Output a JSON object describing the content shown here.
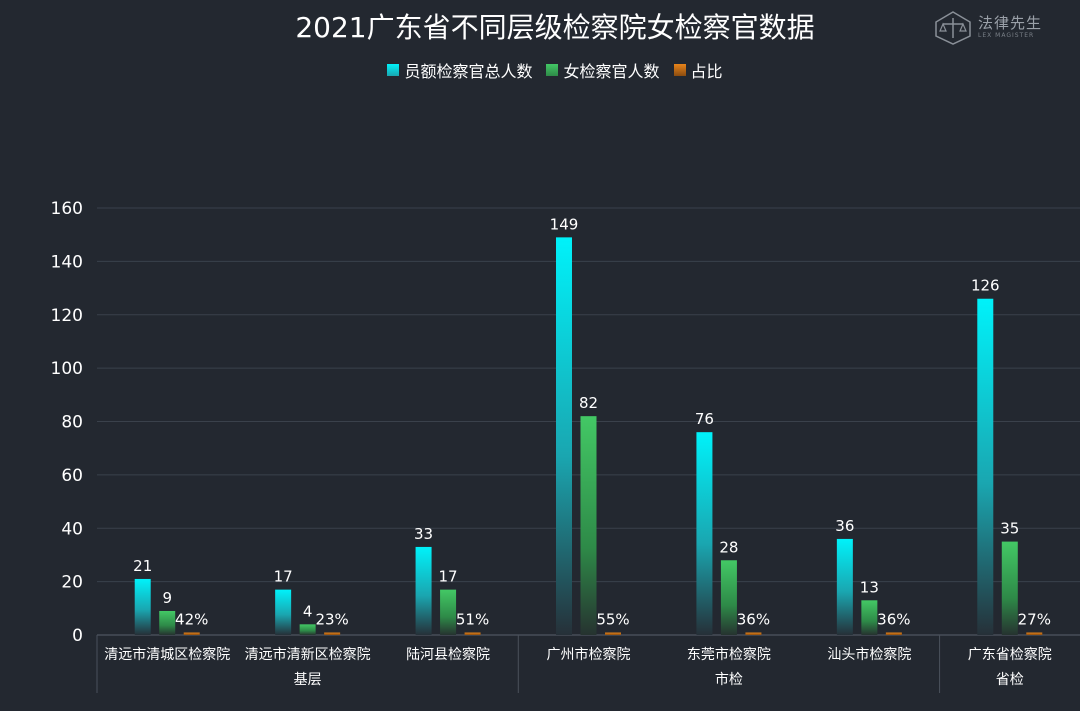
{
  "header": {
    "title": "2021广东省不同层级检察院女检察官数据"
  },
  "logo": {
    "name": "法律先生",
    "subtitle": "LEX MAGISTER",
    "icon": "scales-logo-icon"
  },
  "chart_data": {
    "type": "bar",
    "title": "2021广东省不同层级检察院女检察官数据",
    "xlabel": "",
    "ylabel": "",
    "ylim": [
      0,
      160
    ],
    "yticks": [
      0,
      20,
      40,
      60,
      80,
      100,
      120,
      140,
      160
    ],
    "grid": true,
    "legend_position": "top-center",
    "categories": [
      "清远市清城区检察院",
      "清远市清新区检察院",
      "陆河县检察院",
      "广州市检察院",
      "东莞市检察院",
      "汕头市检察院",
      "广东省检察院"
    ],
    "groups": [
      {
        "label": "基层",
        "categories": [
          "清远市清城区检察院",
          "清远市清新区检察院",
          "陆河县检察院"
        ]
      },
      {
        "label": "市检",
        "categories": [
          "广州市检察院",
          "东莞市检察院",
          "汕头市检察院"
        ]
      },
      {
        "label": "省检",
        "categories": [
          "广东省检察院"
        ]
      }
    ],
    "series": [
      {
        "name": "员额检察官总人数",
        "values": [
          21,
          17,
          33,
          149,
          76,
          36,
          126
        ],
        "labels": [
          "21",
          "17",
          "33",
          "149",
          "76",
          "36",
          "126"
        ],
        "color": "#00e5f0"
      },
      {
        "name": "女检察官人数",
        "values": [
          9,
          4,
          17,
          82,
          28,
          13,
          35
        ],
        "labels": [
          "9",
          "4",
          "17",
          "82",
          "28",
          "13",
          "35"
        ],
        "color": "#3dbb5c"
      },
      {
        "name": "占比",
        "values": [
          0.42,
          0.23,
          0.51,
          0.55,
          0.36,
          0.36,
          0.27
        ],
        "labels": [
          "42%",
          "23%",
          "51%",
          "55%",
          "36%",
          "36%",
          "27%"
        ],
        "color": "#e07b10"
      }
    ]
  }
}
